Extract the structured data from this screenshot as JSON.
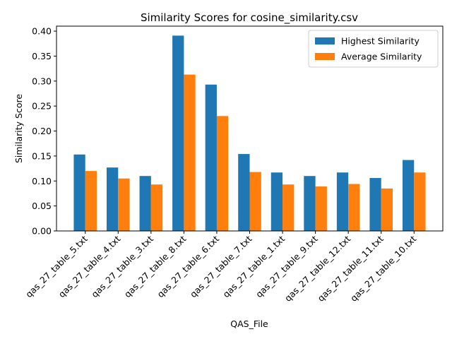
{
  "chart_data": {
    "type": "bar",
    "title": "Similarity Scores for cosine_similarity.csv",
    "xlabel": "QAS_File",
    "ylabel": "Similarity Score",
    "categories": [
      "qas_27_table_5.txt",
      "qas_27_table_4.txt",
      "qas_27_table_3.txt",
      "qas_27_table_8.txt",
      "qas_27_table_6.txt",
      "qas_27_table_7.txt",
      "qas_27_table_1.txt",
      "qas_27_table_9.txt",
      "qas_27_table_12.txt",
      "qas_27_table_11.txt",
      "qas_27_table_10.txt"
    ],
    "series": [
      {
        "name": "Highest Similarity",
        "color": "#1f77b4",
        "values": [
          0.153,
          0.127,
          0.11,
          0.391,
          0.293,
          0.154,
          0.117,
          0.11,
          0.117,
          0.106,
          0.142
        ]
      },
      {
        "name": "Average Similarity",
        "color": "#ff7f0e",
        "values": [
          0.12,
          0.105,
          0.093,
          0.313,
          0.23,
          0.118,
          0.093,
          0.089,
          0.094,
          0.085,
          0.117
        ]
      }
    ],
    "ylim": [
      0,
      0.41
    ],
    "yticks": [
      "0.00",
      "0.05",
      "0.10",
      "0.15",
      "0.20",
      "0.25",
      "0.30",
      "0.35",
      "0.40"
    ],
    "grid": false,
    "legend_position": "top-right"
  }
}
